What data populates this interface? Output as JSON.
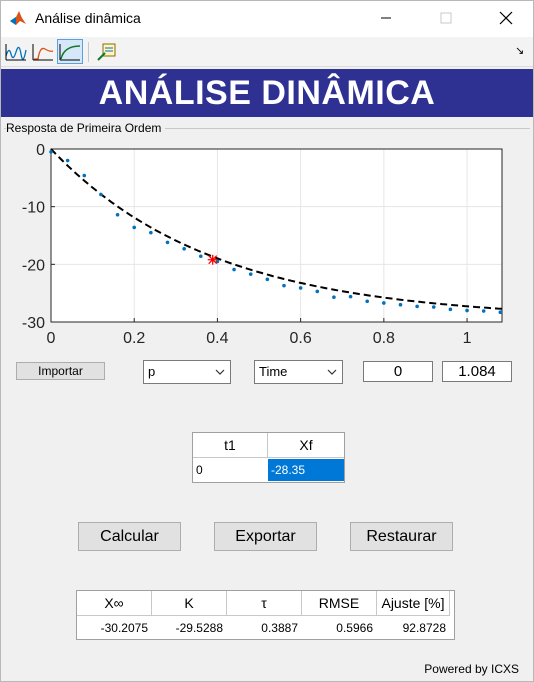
{
  "window": {
    "title": "Análise dinâmica",
    "buttons": [
      "minimize",
      "maximize",
      "close"
    ]
  },
  "toolbar": {
    "items": [
      "signal-icon",
      "step-response-icon",
      "fit-response-icon",
      "export-report-icon"
    ],
    "active_index": 2
  },
  "header": {
    "title": "ANÁLISE DINÂMICA",
    "background": "#2e3192",
    "color": "#ffffff"
  },
  "panel": {
    "title": "Resposta de Primeira Ordem"
  },
  "chart_data": {
    "type": "line",
    "title": "",
    "xlabel": "",
    "ylabel": "",
    "xlim": [
      0,
      1.084
    ],
    "ylim": [
      -30,
      0
    ],
    "xticks": [
      0,
      0.2,
      0.4,
      0.6,
      0.8,
      1
    ],
    "xtick_labels": [
      "0",
      "0.2",
      "0.4",
      "0.6",
      "0.8",
      "1"
    ],
    "yticks": [
      0,
      -10,
      -20,
      -30
    ],
    "ytick_labels": [
      "0",
      "-10",
      "-20",
      "-30"
    ],
    "grid": true,
    "series": [
      {
        "style": "points",
        "color": "#0072bd",
        "x": [
          0,
          0.04,
          0.08,
          0.12,
          0.16,
          0.2,
          0.24,
          0.28,
          0.32,
          0.36,
          0.4,
          0.44,
          0.48,
          0.52,
          0.56,
          0.6,
          0.64,
          0.68,
          0.72,
          0.76,
          0.8,
          0.84,
          0.88,
          0.92,
          0.96,
          1.0,
          1.04,
          1.08
        ],
        "y": [
          -0.5,
          -2.0,
          -4.6,
          -7.9,
          -11.4,
          -13.6,
          -14.5,
          -16.2,
          -17.3,
          -18.6,
          -19.5,
          -20.9,
          -21.7,
          -22.6,
          -23.7,
          -24.1,
          -24.7,
          -25.7,
          -25.6,
          -26.4,
          -26.7,
          -27.0,
          -27.3,
          -27.4,
          -27.8,
          -28.0,
          -28.1,
          -28.3
        ]
      },
      {
        "style": "dashed",
        "color": "#000000",
        "equation": "y = -29.5288*(1-exp(-x/0.3887))"
      },
      {
        "style": "marker",
        "color": "#ff0000",
        "x": [
          0.3887
        ],
        "y": [
          -19.2
        ]
      }
    ]
  },
  "controls": {
    "import_button": "Importar",
    "variable_select": "p",
    "time_select": "Time",
    "start_value": "0",
    "end_value": "1.084"
  },
  "param_table": {
    "headers": [
      "t1",
      "Xf"
    ],
    "row": [
      "0",
      "-28.35"
    ]
  },
  "actions": {
    "calculate": "Calcular",
    "export": "Exportar",
    "restore": "Restaurar"
  },
  "results_table": {
    "headers": [
      "X∞",
      "K",
      "τ",
      "RMSE",
      "Ajuste [%]"
    ],
    "row": [
      "-30.2075",
      "-29.5288",
      "0.3887",
      "0.5966",
      "92.8728"
    ]
  },
  "footer": {
    "powered_by": "Powered by ICXS"
  }
}
